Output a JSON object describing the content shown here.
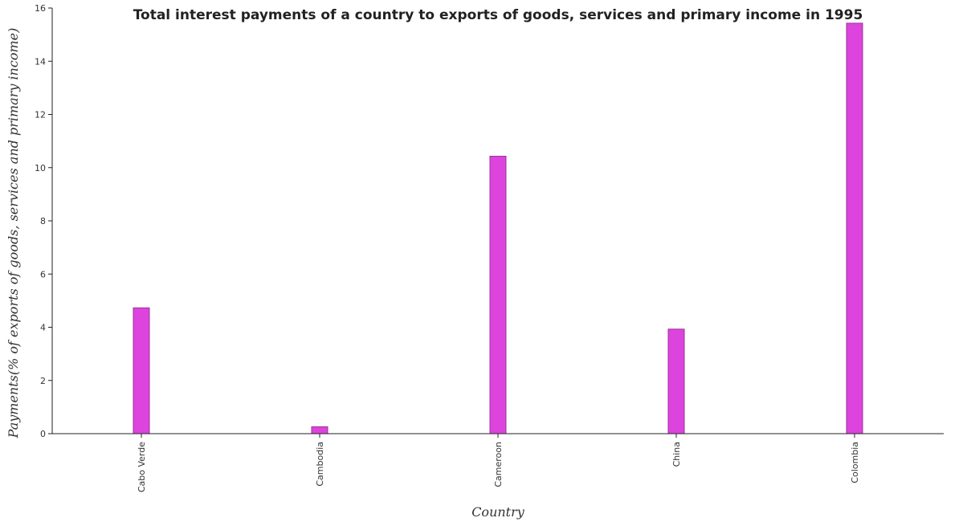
{
  "chart_data": {
    "type": "bar",
    "title": "Total interest payments of a country to exports of goods, services and primary income in 1995",
    "xlabel": "Country",
    "ylabel": "Payments(% of exports of goods, services and primary income)",
    "categories": [
      "Cabo Verde",
      "Cambodia",
      "Cameroon",
      "China",
      "Colombia"
    ],
    "values": [
      4.73,
      0.26,
      10.43,
      3.93,
      15.43
    ],
    "ylim": [
      0,
      16
    ],
    "yticks": [
      0,
      2,
      4,
      6,
      8,
      10,
      12,
      14,
      16
    ],
    "grid": false,
    "bar_color": "#dd44dd"
  }
}
